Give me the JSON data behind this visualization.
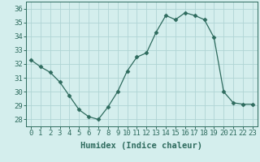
{
  "x": [
    0,
    1,
    2,
    3,
    4,
    5,
    6,
    7,
    8,
    9,
    10,
    11,
    12,
    13,
    14,
    15,
    16,
    17,
    18,
    19,
    20,
    21,
    22,
    23
  ],
  "y": [
    32.3,
    31.8,
    31.4,
    30.7,
    29.7,
    28.7,
    28.2,
    28.0,
    28.9,
    30.0,
    31.5,
    32.5,
    32.8,
    34.3,
    35.5,
    35.2,
    35.7,
    35.5,
    35.2,
    33.9,
    30.0,
    29.2,
    29.1,
    29.1
  ],
  "line_color": "#2e6b5e",
  "marker": "D",
  "marker_size": 2.5,
  "bg_color": "#d4eeed",
  "grid_color": "#b0d4d4",
  "xlabel": "Humidex (Indice chaleur)",
  "ylim": [
    27.5,
    36.5
  ],
  "xlim": [
    -0.5,
    23.5
  ],
  "yticks": [
    28,
    29,
    30,
    31,
    32,
    33,
    34,
    35,
    36
  ],
  "xticks": [
    0,
    1,
    2,
    3,
    4,
    5,
    6,
    7,
    8,
    9,
    10,
    11,
    12,
    13,
    14,
    15,
    16,
    17,
    18,
    19,
    20,
    21,
    22,
    23
  ],
  "tick_label_fontsize": 6.5,
  "xlabel_fontsize": 7.5
}
